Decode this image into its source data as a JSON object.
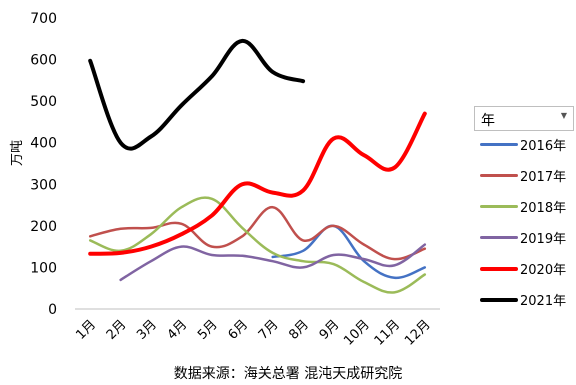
{
  "chart_data": {
    "type": "line",
    "title": "",
    "xlabel": "",
    "ylabel": "万吨",
    "ylim": [
      0,
      700
    ],
    "yticks": [
      "0",
      "100",
      "200",
      "300",
      "400",
      "500",
      "600",
      "700"
    ],
    "categories": [
      "1月",
      "2月",
      "3月",
      "4月",
      "5月",
      "6月",
      "7月",
      "8月",
      "9月",
      "10月",
      "11月",
      "12月"
    ],
    "legend_title": "年",
    "legend_position": "right",
    "grid": false,
    "series": [
      {
        "name": "2016年",
        "color": "#4472c4",
        "width": 2.5,
        "values": [
          null,
          null,
          null,
          null,
          null,
          null,
          125,
          140,
          200,
          115,
          75,
          100
        ]
      },
      {
        "name": "2017年",
        "color": "#c0504d",
        "width": 2.5,
        "values": [
          175,
          193,
          195,
          205,
          150,
          175,
          245,
          165,
          200,
          155,
          120,
          145
        ]
      },
      {
        "name": "2018年",
        "color": "#9bbb59",
        "width": 2.5,
        "values": [
          165,
          140,
          180,
          245,
          265,
          195,
          135,
          115,
          108,
          65,
          40,
          83
        ]
      },
      {
        "name": "2019年",
        "color": "#8064a2",
        "width": 2.5,
        "values": [
          null,
          70,
          115,
          150,
          130,
          128,
          115,
          100,
          130,
          120,
          105,
          155
        ]
      },
      {
        "name": "2020年",
        "color": "#ff0000",
        "width": 4,
        "values": [
          133,
          135,
          150,
          180,
          225,
          300,
          280,
          285,
          410,
          370,
          340,
          470
        ]
      },
      {
        "name": "2021年",
        "color": "#000000",
        "width": 4,
        "values": [
          597,
          400,
          415,
          490,
          560,
          645,
          570,
          548,
          null,
          null,
          null,
          null
        ]
      }
    ]
  },
  "source_text": "数据来源：海关总署 混沌天成研究院"
}
